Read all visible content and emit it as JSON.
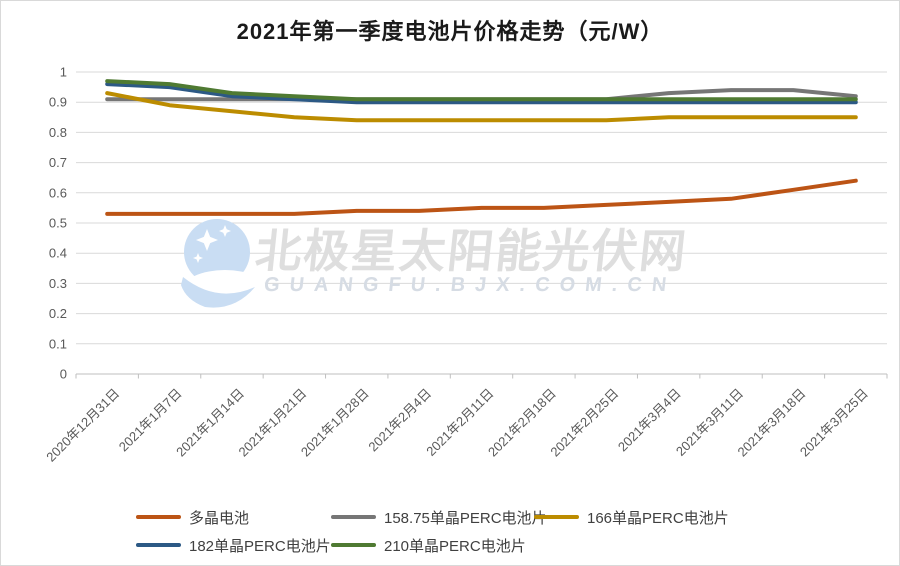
{
  "title": "2021年第一季度电池片价格走势（元/W）",
  "watermark": {
    "name": "北极星太阳能光伏网",
    "domain": "GUANGFU.BJX.COM.CN",
    "logo": "polaris-star-crescent-icon",
    "logo_color": "#c9ddf3",
    "text_color": "#dedede",
    "domain_color": "#d6dce4"
  },
  "palette": {
    "gridline": "#d9d9d9",
    "axis_line": "#bfbfbf",
    "tick_label": "#595959",
    "title_text": "#1a1a1a",
    "legend_text": "#404040"
  },
  "axis": {
    "ytick_labels": [
      "1",
      "0.9",
      "0.8",
      "0.7",
      "0.6",
      "0.5",
      "0.4",
      "0.3",
      "0.2",
      "0.1",
      "0"
    ]
  },
  "chart_data": {
    "type": "line",
    "title": "2021年第一季度电池片价格走势（元/W）",
    "xlabel": "",
    "ylabel": "",
    "ylim": [
      0,
      1
    ],
    "ytick_step": 0.1,
    "grid": true,
    "legend_position": "bottom",
    "categories": [
      "2020年12月31日",
      "2021年1月7日",
      "2021年1月14日",
      "2021年1月21日",
      "2021年1月28日",
      "2021年2月4日",
      "2021年2月11日",
      "2021年2月18日",
      "2021年2月25日",
      "2021年3月4日",
      "2021年3月11日",
      "2021年3月18日",
      "2021年3月25日"
    ],
    "series": [
      {
        "name": "多晶电池",
        "color": "#bc5415",
        "values": [
          0.53,
          0.53,
          0.53,
          0.53,
          0.54,
          0.54,
          0.55,
          0.55,
          0.56,
          0.57,
          0.58,
          0.61,
          0.64
        ]
      },
      {
        "name": "158.75单晶PERC电池片",
        "color": "#767676",
        "values": [
          0.91,
          0.91,
          0.91,
          0.91,
          0.91,
          0.91,
          0.91,
          0.91,
          0.91,
          0.93,
          0.94,
          0.94,
          0.92
        ]
      },
      {
        "name": "166单晶PERC电池片",
        "color": "#bc8c00",
        "values": [
          0.93,
          0.89,
          0.87,
          0.85,
          0.84,
          0.84,
          0.84,
          0.84,
          0.84,
          0.85,
          0.85,
          0.85,
          0.85
        ]
      },
      {
        "name": "182单晶PERC电池片",
        "color": "#2c5985",
        "values": [
          0.96,
          0.95,
          0.92,
          0.91,
          0.9,
          0.9,
          0.9,
          0.9,
          0.9,
          0.9,
          0.9,
          0.9,
          0.9
        ]
      },
      {
        "name": "210单晶PERC电池片",
        "color": "#4f7a32",
        "values": [
          0.97,
          0.96,
          0.93,
          0.92,
          0.91,
          0.91,
          0.91,
          0.91,
          0.91,
          0.91,
          0.91,
          0.91,
          0.91
        ]
      }
    ]
  }
}
